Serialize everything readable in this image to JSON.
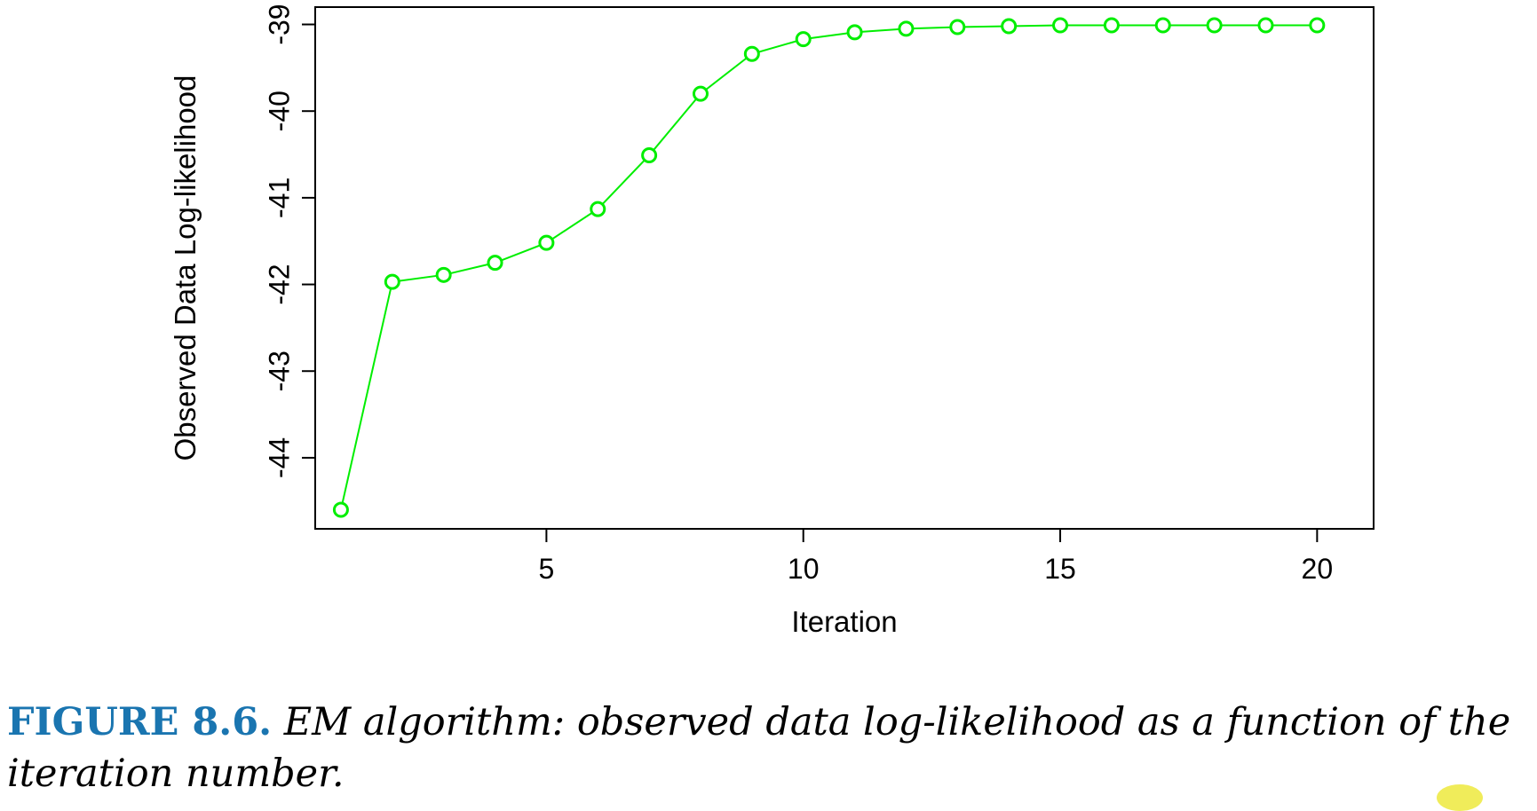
{
  "chart_data": {
    "type": "line",
    "title": "",
    "xlabel": "Iteration",
    "ylabel": "Observed Data Log-likelihood",
    "xlim": [
      0.5,
      21.1
    ],
    "ylim": [
      -44.82,
      -38.8
    ],
    "x_ticks": [
      5,
      10,
      15,
      20
    ],
    "y_ticks": [
      -44,
      -43,
      -42,
      -41,
      -40,
      -39
    ],
    "grid": false,
    "legend": "none",
    "series": [
      {
        "color": "#00ee00",
        "marker": "open-circle",
        "x": [
          1,
          2,
          3,
          4,
          5,
          6,
          7,
          8,
          9,
          10,
          11,
          12,
          13,
          14,
          15,
          16,
          17,
          18,
          19,
          20
        ],
        "y": [
          -44.6,
          -41.97,
          -41.89,
          -41.75,
          -41.52,
          -41.13,
          -40.51,
          -39.8,
          -39.34,
          -39.17,
          -39.09,
          -39.05,
          -39.03,
          -39.02,
          -39.01,
          -39.01,
          -39.01,
          -39.01,
          -39.01,
          -39.01
        ]
      }
    ]
  },
  "caption": {
    "label": "FIGURE 8.6.",
    "text": "EM algorithm: observed data log-likelihood as a function of the iteration number."
  }
}
